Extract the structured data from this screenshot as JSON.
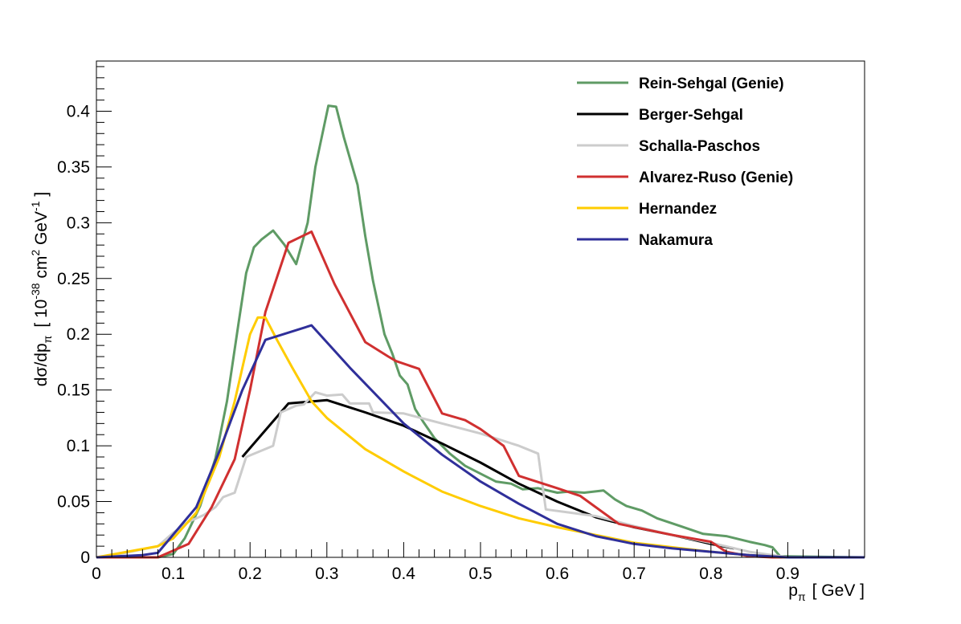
{
  "chart_data": {
    "type": "line",
    "title": "",
    "xlabel": {
      "main": "p",
      "sub": "π",
      "unit": "[ GeV ]"
    },
    "ylabel": {
      "pre": "dσ/dp",
      "sub": "π",
      "unit_open": "[ 10",
      "exp1": "-38",
      "mid": " cm",
      "exp2": "2",
      "mid2": " GeV",
      "exp3": "-1",
      "close": " ]"
    },
    "xlim": [
      0,
      1.0
    ],
    "ylim": [
      0,
      0.445
    ],
    "xticks": [
      0,
      0.1,
      0.2,
      0.3,
      0.4,
      0.5,
      0.6,
      0.7,
      0.8,
      0.9
    ],
    "xtick_labels": [
      "0",
      "0.1",
      "0.2",
      "0.3",
      "0.4",
      "0.5",
      "0.6",
      "0.7",
      "0.8",
      "0.9"
    ],
    "yticks": [
      0,
      0.05,
      0.1,
      0.15,
      0.2,
      0.25,
      0.3,
      0.35,
      0.4
    ],
    "ytick_labels": [
      "0",
      "0.05",
      "0.1",
      "0.15",
      "0.2",
      "0.25",
      "0.3",
      "0.35",
      "0.4"
    ],
    "grid": false,
    "legend_position": "top-right",
    "series": [
      {
        "name": "Rein-Sehgal (Genie)",
        "color": "#5f9b65",
        "points": [
          [
            0,
            0
          ],
          [
            0.08,
            0
          ],
          [
            0.1,
            0.003
          ],
          [
            0.115,
            0.017
          ],
          [
            0.135,
            0.046
          ],
          [
            0.155,
            0.089
          ],
          [
            0.17,
            0.14
          ],
          [
            0.185,
            0.21
          ],
          [
            0.195,
            0.255
          ],
          [
            0.205,
            0.278
          ],
          [
            0.215,
            0.285
          ],
          [
            0.23,
            0.293
          ],
          [
            0.245,
            0.28
          ],
          [
            0.26,
            0.263
          ],
          [
            0.275,
            0.3
          ],
          [
            0.285,
            0.35
          ],
          [
            0.302,
            0.405
          ],
          [
            0.312,
            0.404
          ],
          [
            0.322,
            0.377
          ],
          [
            0.34,
            0.334
          ],
          [
            0.35,
            0.288
          ],
          [
            0.36,
            0.248
          ],
          [
            0.375,
            0.2
          ],
          [
            0.385,
            0.183
          ],
          [
            0.395,
            0.163
          ],
          [
            0.405,
            0.155
          ],
          [
            0.415,
            0.133
          ],
          [
            0.425,
            0.122
          ],
          [
            0.44,
            0.107
          ],
          [
            0.46,
            0.093
          ],
          [
            0.48,
            0.082
          ],
          [
            0.5,
            0.075
          ],
          [
            0.52,
            0.068
          ],
          [
            0.54,
            0.066
          ],
          [
            0.555,
            0.061
          ],
          [
            0.575,
            0.062
          ],
          [
            0.6,
            0.058
          ],
          [
            0.615,
            0.059
          ],
          [
            0.635,
            0.058
          ],
          [
            0.66,
            0.06
          ],
          [
            0.675,
            0.052
          ],
          [
            0.69,
            0.046
          ],
          [
            0.71,
            0.042
          ],
          [
            0.73,
            0.035
          ],
          [
            0.76,
            0.028
          ],
          [
            0.79,
            0.021
          ],
          [
            0.82,
            0.019
          ],
          [
            0.85,
            0.014
          ],
          [
            0.87,
            0.011
          ],
          [
            0.88,
            0.009
          ],
          [
            0.89,
            0.001
          ],
          [
            1.0,
            0
          ]
        ]
      },
      {
        "name": "Berger-Sehgal",
        "color": "#000000",
        "points": [
          [
            0.19,
            0.09
          ],
          [
            0.25,
            0.138
          ],
          [
            0.3,
            0.141
          ],
          [
            0.35,
            0.13
          ],
          [
            0.4,
            0.118
          ],
          [
            0.45,
            0.102
          ],
          [
            0.5,
            0.085
          ],
          [
            0.55,
            0.066
          ],
          [
            0.6,
            0.05
          ],
          [
            0.65,
            0.036
          ],
          [
            0.7,
            0.027
          ],
          [
            0.75,
            0.02
          ],
          [
            0.8,
            0.012
          ],
          [
            0.83,
            0.008
          ]
        ]
      },
      {
        "name": "Schalla-Paschos",
        "color": "#cccccc",
        "points": [
          [
            0,
            0
          ],
          [
            0.03,
            0.003
          ],
          [
            0.08,
            0.01
          ],
          [
            0.1,
            0.022
          ],
          [
            0.12,
            0.032
          ],
          [
            0.14,
            0.038
          ],
          [
            0.155,
            0.045
          ],
          [
            0.165,
            0.054
          ],
          [
            0.18,
            0.058
          ],
          [
            0.195,
            0.09
          ],
          [
            0.23,
            0.1
          ],
          [
            0.24,
            0.13
          ],
          [
            0.26,
            0.136
          ],
          [
            0.27,
            0.137
          ],
          [
            0.285,
            0.148
          ],
          [
            0.3,
            0.145
          ],
          [
            0.32,
            0.146
          ],
          [
            0.33,
            0.138
          ],
          [
            0.355,
            0.138
          ],
          [
            0.36,
            0.13
          ],
          [
            0.4,
            0.129
          ],
          [
            0.45,
            0.12
          ],
          [
            0.5,
            0.111
          ],
          [
            0.55,
            0.1
          ],
          [
            0.575,
            0.093
          ],
          [
            0.585,
            0.043
          ],
          [
            0.65,
            0.037
          ],
          [
            0.7,
            0.028
          ],
          [
            0.75,
            0.02
          ],
          [
            0.8,
            0.013
          ],
          [
            0.85,
            0.005
          ],
          [
            0.9,
            0
          ],
          [
            1,
            0
          ]
        ]
      },
      {
        "name": "Alvarez-Ruso (Genie)",
        "color": "#d03030",
        "points": [
          [
            0,
            0
          ],
          [
            0.08,
            0
          ],
          [
            0.12,
            0.012
          ],
          [
            0.15,
            0.045
          ],
          [
            0.18,
            0.088
          ],
          [
            0.2,
            0.15
          ],
          [
            0.22,
            0.22
          ],
          [
            0.25,
            0.282
          ],
          [
            0.28,
            0.292
          ],
          [
            0.31,
            0.245
          ],
          [
            0.35,
            0.193
          ],
          [
            0.38,
            0.18
          ],
          [
            0.39,
            0.176
          ],
          [
            0.42,
            0.169
          ],
          [
            0.45,
            0.129
          ],
          [
            0.48,
            0.123
          ],
          [
            0.5,
            0.115
          ],
          [
            0.53,
            0.1
          ],
          [
            0.55,
            0.073
          ],
          [
            0.6,
            0.062
          ],
          [
            0.63,
            0.055
          ],
          [
            0.65,
            0.045
          ],
          [
            0.68,
            0.03
          ],
          [
            0.75,
            0.02
          ],
          [
            0.8,
            0.014
          ],
          [
            0.82,
            0.005
          ],
          [
            0.85,
            0.001
          ],
          [
            0.88,
            0
          ],
          [
            1,
            0
          ]
        ]
      },
      {
        "name": "Hernandez",
        "color": "#ffcc00",
        "points": [
          [
            0,
            0
          ],
          [
            0.08,
            0.01
          ],
          [
            0.1,
            0.017
          ],
          [
            0.13,
            0.04
          ],
          [
            0.16,
            0.09
          ],
          [
            0.18,
            0.14
          ],
          [
            0.2,
            0.2
          ],
          [
            0.21,
            0.215
          ],
          [
            0.22,
            0.215
          ],
          [
            0.235,
            0.195
          ],
          [
            0.255,
            0.17
          ],
          [
            0.28,
            0.14
          ],
          [
            0.3,
            0.125
          ],
          [
            0.35,
            0.097
          ],
          [
            0.4,
            0.077
          ],
          [
            0.45,
            0.059
          ],
          [
            0.5,
            0.046
          ],
          [
            0.55,
            0.035
          ],
          [
            0.6,
            0.027
          ],
          [
            0.65,
            0.02
          ],
          [
            0.7,
            0.013
          ],
          [
            0.75,
            0.009
          ],
          [
            0.8,
            0.005
          ],
          [
            0.85,
            0.002
          ],
          [
            0.9,
            0
          ],
          [
            1,
            0
          ]
        ]
      },
      {
        "name": "Nakamura",
        "color": "#2f2f9a",
        "points": [
          [
            0,
            0
          ],
          [
            0.06,
            0.002
          ],
          [
            0.08,
            0.004
          ],
          [
            0.13,
            0.045
          ],
          [
            0.16,
            0.095
          ],
          [
            0.19,
            0.15
          ],
          [
            0.22,
            0.195
          ],
          [
            0.28,
            0.208
          ],
          [
            0.33,
            0.17
          ],
          [
            0.4,
            0.12
          ],
          [
            0.45,
            0.092
          ],
          [
            0.5,
            0.068
          ],
          [
            0.55,
            0.048
          ],
          [
            0.6,
            0.03
          ],
          [
            0.65,
            0.019
          ],
          [
            0.7,
            0.012
          ],
          [
            0.75,
            0.008
          ],
          [
            0.8,
            0.005
          ],
          [
            0.85,
            0.002
          ],
          [
            0.9,
            0
          ],
          [
            1,
            0
          ]
        ]
      }
    ]
  }
}
